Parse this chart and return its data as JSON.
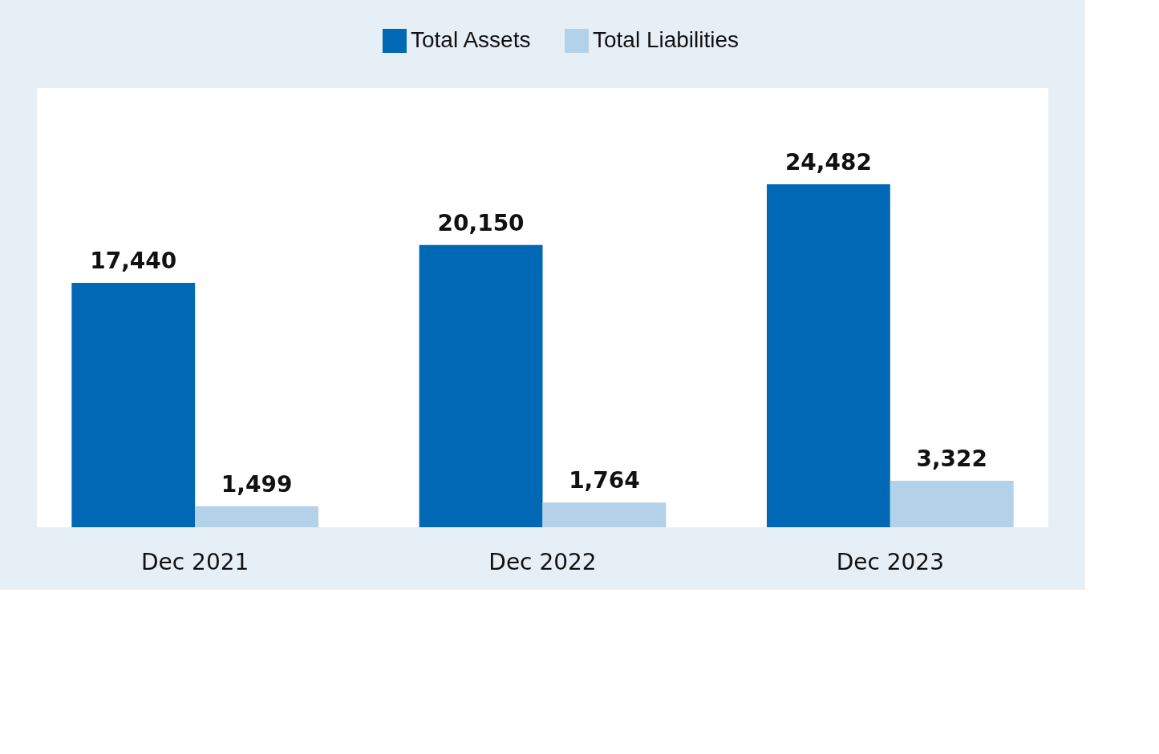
{
  "chart_data": {
    "type": "bar",
    "categories": [
      "Dec 2021",
      "Dec 2022",
      "Dec 2023"
    ],
    "series": [
      {
        "name": "Total Assets",
        "color": "#0068b4",
        "values": [
          17440,
          20150,
          24482
        ],
        "value_labels": [
          "17,440",
          "20,150",
          "24,482"
        ]
      },
      {
        "name": "Total Liabilities",
        "color": "#b3d1e8",
        "values": [
          1499,
          1764,
          3322
        ],
        "value_labels": [
          "1,499",
          "1,764",
          "3,322"
        ]
      }
    ],
    "legend": "top",
    "grid": false
  }
}
